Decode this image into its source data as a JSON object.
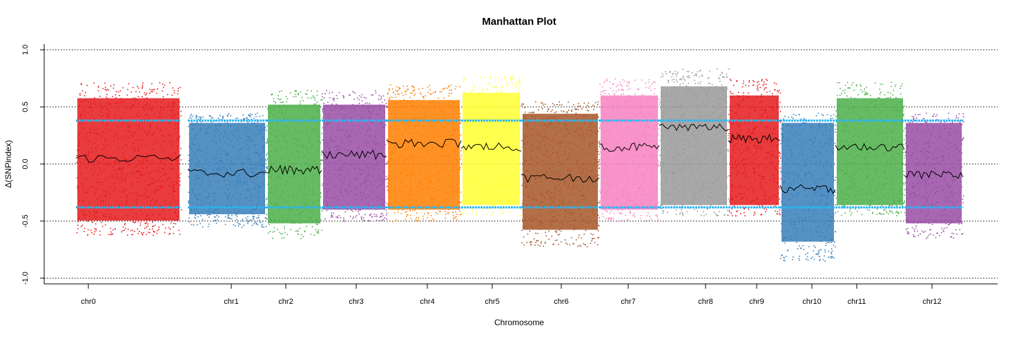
{
  "chart_data": {
    "type": "scatter",
    "title": "Manhattan Plot",
    "xlabel": "Chromosome",
    "ylabel": "Δ(SNPindex)",
    "ylim": [
      -1.05,
      1.05
    ],
    "yticks": [
      "-1.0",
      "-0.5",
      "0.0",
      "0.5",
      "1.0"
    ],
    "reference_lines": [
      -1.0,
      -0.5,
      0.0,
      0.5,
      1.0
    ],
    "grid": false,
    "legend": "none",
    "threshold_color": "#29B6F6",
    "trend_color": "#000000",
    "chromosomes": [
      {
        "name": "chr0",
        "color": "#E41A1C",
        "low": -0.62,
        "high": 0.72,
        "trend": 0.05,
        "threshold": 0.38
      },
      {
        "name": "chr1",
        "color": "#377EB8",
        "low": -0.55,
        "high": 0.45,
        "trend": -0.08,
        "threshold": 0.38
      },
      {
        "name": "chr2",
        "color": "#4DAF4A",
        "low": -0.65,
        "high": 0.65,
        "trend": -0.05,
        "threshold": 0.38
      },
      {
        "name": "chr3",
        "color": "#984EA3",
        "low": -0.5,
        "high": 0.65,
        "trend": 0.08,
        "threshold": 0.38
      },
      {
        "name": "chr4",
        "color": "#FF7F00",
        "low": -0.5,
        "high": 0.7,
        "trend": 0.18,
        "threshold": 0.38
      },
      {
        "name": "chr5",
        "color": "#FFFF33",
        "low": -0.45,
        "high": 0.78,
        "trend": 0.15,
        "threshold": 0.38
      },
      {
        "name": "chr6",
        "color": "#A65628",
        "low": -0.72,
        "high": 0.55,
        "trend": -0.12,
        "threshold": 0.38
      },
      {
        "name": "chr7",
        "color": "#F781BF",
        "low": -0.5,
        "high": 0.75,
        "trend": 0.15,
        "threshold": 0.38
      },
      {
        "name": "chr8",
        "color": "#999999",
        "low": -0.45,
        "high": 0.85,
        "trend": 0.32,
        "threshold": 0.38
      },
      {
        "name": "chr9",
        "color": "#E41A1C",
        "low": -0.45,
        "high": 0.75,
        "trend": 0.22,
        "threshold": 0.38
      },
      {
        "name": "chr10",
        "color": "#377EB8",
        "low": -0.85,
        "high": 0.45,
        "trend": -0.22,
        "threshold": 0.38
      },
      {
        "name": "chr11",
        "color": "#4DAF4A",
        "low": -0.45,
        "high": 0.72,
        "trend": 0.15,
        "threshold": 0.38
      },
      {
        "name": "chr12",
        "color": "#984EA3",
        "low": -0.65,
        "high": 0.45,
        "trend": -0.1,
        "threshold": 0.38
      }
    ]
  }
}
